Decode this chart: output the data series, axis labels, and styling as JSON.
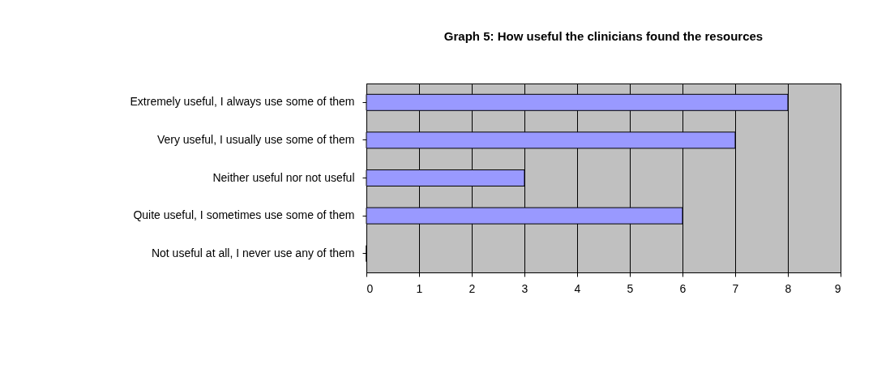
{
  "chart_data": {
    "type": "bar",
    "orientation": "horizontal",
    "title": "Graph 5: How useful the clinicians found the resources",
    "categories": [
      "Extremely useful, I always use some of them",
      "Very useful, I usually use some of them",
      "Neither useful nor not useful",
      "Quite useful, I sometimes use some of them",
      "Not useful at all, I never use any of them"
    ],
    "values": [
      8,
      7,
      3,
      6,
      0
    ],
    "color": "#9999ff",
    "xlim": [
      0,
      9
    ],
    "xticks": [
      0,
      1,
      2,
      3,
      4,
      5,
      6,
      7,
      8,
      9
    ],
    "grid": "x"
  }
}
